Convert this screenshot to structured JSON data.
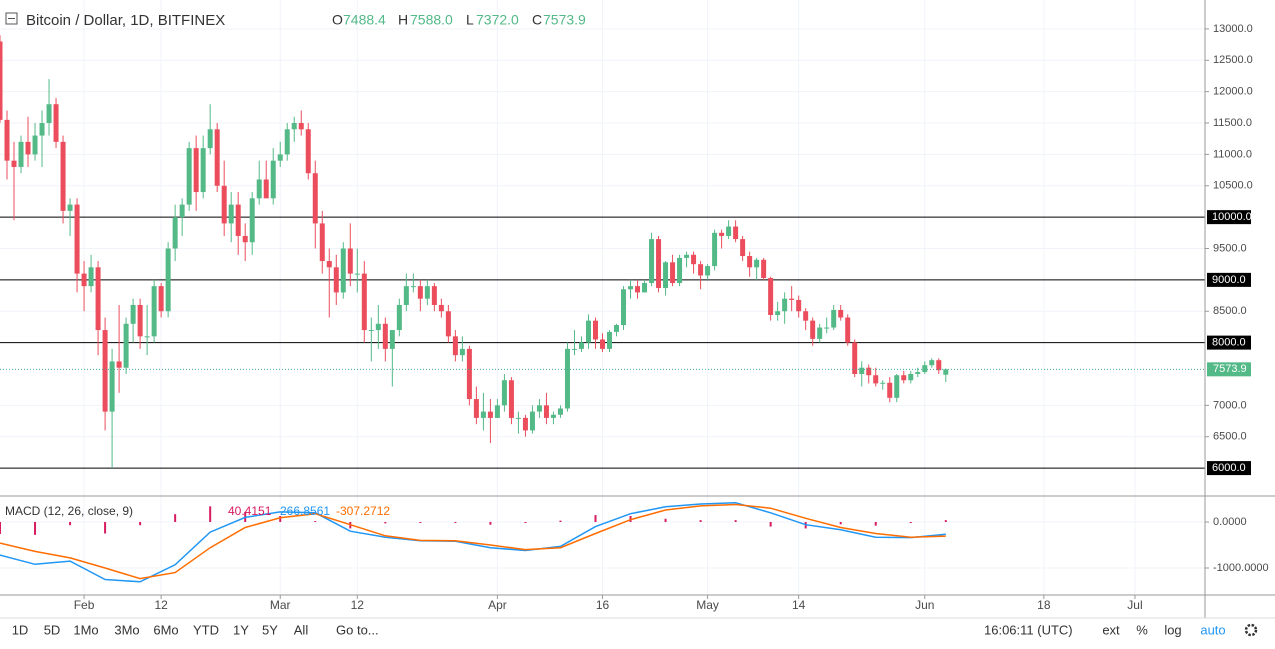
{
  "header": {
    "title": "Bitcoin / Dollar, 1D, BITFINEX",
    "o": "O",
    "h": "H",
    "l": "L",
    "c": "C",
    "high_label": "7588.0",
    "low_label": "7372.0"
  },
  "chart_data": {
    "type": "candlestick",
    "colors": {
      "up": "#53b987",
      "down": "#eb4d5c",
      "price_line": "#3fae97",
      "level": "#000000"
    },
    "xlim": [
      0,
      172
    ],
    "xticks": [
      {
        "value": 12,
        "label": "Feb"
      },
      {
        "value": 23,
        "label": "12"
      },
      {
        "value": 40,
        "label": "Mar"
      },
      {
        "value": 51,
        "label": "12"
      },
      {
        "value": 71,
        "label": "Apr"
      },
      {
        "value": 86,
        "label": "16"
      },
      {
        "value": 101,
        "label": "May"
      },
      {
        "value": 114,
        "label": "14"
      },
      {
        "value": 132,
        "label": "Jun"
      },
      {
        "value": 149,
        "label": "18"
      },
      {
        "value": 162,
        "label": "Jul"
      }
    ],
    "ylim": [
      5555,
      13461
    ],
    "yticks": [
      {
        "value": 13000,
        "label": "13000.0"
      },
      {
        "value": 12500,
        "label": "12500.0"
      },
      {
        "value": 12000,
        "label": "12000.0"
      },
      {
        "value": 11500,
        "label": "11500.0"
      },
      {
        "value": 11000,
        "label": "11000.0"
      },
      {
        "value": 10500,
        "label": "10500.0"
      },
      {
        "value": 9500,
        "label": "9500.0"
      },
      {
        "value": 8500,
        "label": "8500.0"
      },
      {
        "value": 7000,
        "label": "7000.0"
      },
      {
        "value": 6500,
        "label": "6500.0"
      }
    ],
    "levels": [
      {
        "value": 10000,
        "label": "10000.0"
      },
      {
        "value": 9000,
        "label": "9000.0"
      },
      {
        "value": 8000,
        "label": "8000.0"
      },
      {
        "value": 6000,
        "label": "6000.0"
      }
    ],
    "grid": true,
    "ohlc": [
      [
        12800,
        12900,
        11500,
        11550
      ],
      [
        11550,
        11700,
        10600,
        10900
      ],
      [
        10900,
        11200,
        9950,
        10800
      ],
      [
        10800,
        11300,
        10700,
        11200
      ],
      [
        11200,
        11600,
        10800,
        11000
      ],
      [
        11000,
        11500,
        10900,
        11300
      ],
      [
        11300,
        11700,
        10800,
        11500
      ],
      [
        11500,
        12200,
        11300,
        11800
      ],
      [
        11800,
        11900,
        11100,
        11200
      ],
      [
        11200,
        11300,
        9900,
        10100
      ],
      [
        10100,
        10300,
        9700,
        10200
      ],
      [
        10200,
        10300,
        8800,
        9100
      ],
      [
        9100,
        9300,
        8500,
        8900
      ],
      [
        8900,
        9400,
        8800,
        9200
      ],
      [
        9200,
        9300,
        7800,
        8200
      ],
      [
        8200,
        8400,
        6600,
        6900
      ],
      [
        6900,
        7900,
        6000,
        7700
      ],
      [
        7700,
        8600,
        7200,
        7600
      ],
      [
        7600,
        8400,
        7500,
        8300
      ],
      [
        8300,
        8700,
        8000,
        8600
      ],
      [
        8600,
        8700,
        7900,
        8100
      ],
      [
        8100,
        8600,
        7800,
        8100
      ],
      [
        8100,
        9000,
        8000,
        8900
      ],
      [
        8900,
        8950,
        8400,
        8500
      ],
      [
        8500,
        9600,
        8400,
        9500
      ],
      [
        9500,
        10200,
        9300,
        10000
      ],
      [
        10000,
        10300,
        9700,
        10200
      ],
      [
        10200,
        11200,
        10100,
        11100
      ],
      [
        11100,
        11300,
        10100,
        10400
      ],
      [
        10400,
        11300,
        10300,
        11100
      ],
      [
        11100,
        11800,
        11000,
        11400
      ],
      [
        11400,
        11500,
        10400,
        10500
      ],
      [
        10500,
        10900,
        9700,
        9900
      ],
      [
        9900,
        10400,
        9600,
        10200
      ],
      [
        10200,
        10400,
        9400,
        9700
      ],
      [
        9700,
        9900,
        9300,
        9600
      ],
      [
        9600,
        10400,
        9400,
        10300
      ],
      [
        10300,
        10900,
        10200,
        10600
      ],
      [
        10600,
        10900,
        10300,
        10300
      ],
      [
        10300,
        11100,
        10200,
        10900
      ],
      [
        10900,
        11200,
        10800,
        11000
      ],
      [
        11000,
        11500,
        10900,
        11400
      ],
      [
        11400,
        11600,
        11200,
        11500
      ],
      [
        11500,
        11700,
        11300,
        11400
      ],
      [
        11400,
        11500,
        10600,
        10700
      ],
      [
        10700,
        10900,
        9500,
        9900
      ],
      [
        9900,
        10100,
        9100,
        9300
      ],
      [
        9300,
        9500,
        8400,
        9200
      ],
      [
        9200,
        9400,
        8600,
        8800
      ],
      [
        8800,
        9600,
        8700,
        9500
      ],
      [
        9500,
        9900,
        8900,
        9100
      ],
      [
        9100,
        9500,
        8800,
        9100
      ],
      [
        9100,
        9300,
        8000,
        8200
      ],
      [
        8200,
        8400,
        7700,
        8200
      ],
      [
        8200,
        8600,
        7900,
        8300
      ],
      [
        8300,
        8400,
        7700,
        7900
      ],
      [
        7900,
        8200,
        7300,
        8200
      ],
      [
        8200,
        8700,
        8100,
        8600
      ],
      [
        8600,
        9100,
        8500,
        8900
      ],
      [
        8900,
        9100,
        8800,
        8900
      ],
      [
        8900,
        9000,
        8500,
        8700
      ],
      [
        8700,
        9000,
        8600,
        8900
      ],
      [
        8900,
        8950,
        8500,
        8600
      ],
      [
        8600,
        8700,
        8400,
        8500
      ],
      [
        8500,
        8600,
        8000,
        8100
      ],
      [
        8100,
        8200,
        7700,
        7800
      ],
      [
        7800,
        8100,
        7700,
        7900
      ],
      [
        7900,
        7950,
        7000,
        7100
      ],
      [
        7100,
        7300,
        6700,
        6800
      ],
      [
        6800,
        7200,
        6600,
        6900
      ],
      [
        6900,
        7100,
        6400,
        6800
      ],
      [
        6800,
        7100,
        6800,
        7000
      ],
      [
        7000,
        7500,
        6900,
        7400
      ],
      [
        7400,
        7450,
        6700,
        6800
      ],
      [
        6800,
        6900,
        6550,
        6800
      ],
      [
        6800,
        6850,
        6500,
        6600
      ],
      [
        6600,
        7000,
        6550,
        6900
      ],
      [
        6900,
        7100,
        6800,
        7000
      ],
      [
        7000,
        7200,
        6700,
        6800
      ],
      [
        6800,
        6900,
        6700,
        6850
      ],
      [
        6850,
        7000,
        6800,
        6950
      ],
      [
        6950,
        8000,
        6900,
        7900
      ],
      [
        7900,
        8200,
        7800,
        7900
      ],
      [
        7900,
        8100,
        7850,
        8000
      ],
      [
        8000,
        8450,
        7900,
        8350
      ],
      [
        8350,
        8400,
        7900,
        8050
      ],
      [
        8050,
        8150,
        7850,
        7900
      ],
      [
        7900,
        8200,
        7850,
        8170
      ],
      [
        8170,
        8300,
        8100,
        8280
      ],
      [
        8280,
        8900,
        8200,
        8850
      ],
      [
        8850,
        9000,
        8700,
        8900
      ],
      [
        8900,
        9000,
        8700,
        8800
      ],
      [
        8800,
        9000,
        8800,
        8950
      ],
      [
        8950,
        9750,
        8900,
        9650
      ],
      [
        9650,
        9700,
        8800,
        8870
      ],
      [
        8870,
        9300,
        8750,
        9280
      ],
      [
        9280,
        9400,
        8900,
        8950
      ],
      [
        8950,
        9400,
        8900,
        9350
      ],
      [
        9350,
        9450,
        9200,
        9400
      ],
      [
        9400,
        9450,
        9100,
        9250
      ],
      [
        9250,
        9300,
        8850,
        9070
      ],
      [
        9070,
        9250,
        9000,
        9220
      ],
      [
        9220,
        9800,
        9150,
        9750
      ],
      [
        9750,
        9800,
        9500,
        9700
      ],
      [
        9700,
        9950,
        9650,
        9850
      ],
      [
        9850,
        9950,
        9600,
        9650
      ],
      [
        9650,
        9700,
        9300,
        9380
      ],
      [
        9380,
        9450,
        9050,
        9200
      ],
      [
        9200,
        9350,
        9000,
        9320
      ],
      [
        9320,
        9350,
        9000,
        9030
      ],
      [
        9030,
        9050,
        8350,
        8440
      ],
      [
        8440,
        8650,
        8350,
        8500
      ],
      [
        8500,
        8800,
        8300,
        8700
      ],
      [
        8700,
        8900,
        8500,
        8680
      ],
      [
        8680,
        8750,
        8400,
        8500
      ],
      [
        8500,
        8550,
        8200,
        8350
      ],
      [
        8350,
        8400,
        7950,
        8060
      ],
      [
        8060,
        8300,
        8000,
        8240
      ],
      [
        8240,
        8400,
        8150,
        8240
      ],
      [
        8240,
        8600,
        8200,
        8520
      ],
      [
        8520,
        8600,
        8350,
        8400
      ],
      [
        8400,
        8450,
        7950,
        8000
      ],
      [
        8000,
        8050,
        7450,
        7500
      ],
      [
        7500,
        7700,
        7300,
        7600
      ],
      [
        7600,
        7650,
        7350,
        7480
      ],
      [
        7480,
        7600,
        7300,
        7350
      ],
      [
        7350,
        7400,
        7250,
        7360
      ],
      [
        7360,
        7450,
        7050,
        7120
      ],
      [
        7120,
        7500,
        7050,
        7480
      ],
      [
        7480,
        7550,
        7350,
        7400
      ],
      [
        7400,
        7550,
        7350,
        7500
      ],
      [
        7500,
        7600,
        7450,
        7530
      ],
      [
        7530,
        7700,
        7500,
        7640
      ],
      [
        7640,
        7750,
        7600,
        7720
      ],
      [
        7720,
        7750,
        7500,
        7560
      ],
      [
        7488.4,
        7588.0,
        7372.0,
        7573.9
      ]
    ],
    "macd": {
      "title": "MACD (12, 26, close, 9)",
      "x": [
        0,
        5,
        10,
        15,
        20,
        25,
        30,
        35,
        40,
        45,
        50,
        55,
        60,
        65,
        70,
        75,
        80,
        85,
        90,
        95,
        100,
        105,
        110,
        115,
        120,
        125,
        130,
        135
      ],
      "ylim": [
        -1587,
        543
      ],
      "yticks": [
        {
          "value": 0,
          "label": "0.0000"
        },
        {
          "value": -1000,
          "label": "-1000.0000"
        }
      ],
      "series": [
        {
          "color": "#2196f3",
          "values": [
            -720,
            -920,
            -850,
            -1250,
            -1300,
            -930,
            -220,
            100,
            220,
            200,
            -200,
            -330,
            -410,
            -420,
            -560,
            -620,
            -530,
            -100,
            180,
            330,
            390,
            420,
            200,
            -60,
            -170,
            -330,
            -340,
            -266.8561
          ]
        },
        {
          "color": "#ff6d00",
          "values": [
            -460,
            -640,
            -780,
            -1000,
            -1230,
            -1100,
            -560,
            -120,
            90,
            180,
            -60,
            -300,
            -400,
            -410,
            -500,
            -600,
            -560,
            -250,
            50,
            260,
            350,
            380,
            300,
            80,
            -120,
            -250,
            -330,
            -307.2712
          ]
        }
      ],
      "histogram": {
        "color": "#d81b60",
        "values": [
          -260,
          -280,
          -70,
          -250,
          -70,
          170,
          340,
          220,
          130,
          20,
          -140,
          -30,
          -10,
          -10,
          -60,
          -20,
          30,
          150,
          130,
          70,
          40,
          40,
          -100,
          -140,
          -50,
          -80,
          -10,
          40.4151
        ]
      }
    }
  },
  "toolbar": {
    "ranges": [
      "1D",
      "5D",
      "1Mo",
      "3Mo",
      "6Mo",
      "YTD",
      "1Y",
      "5Y",
      "All"
    ],
    "goto": "Go to...",
    "time": "16:06:11 (UTC)",
    "options": [
      "ext",
      "%",
      "log",
      "auto"
    ]
  }
}
